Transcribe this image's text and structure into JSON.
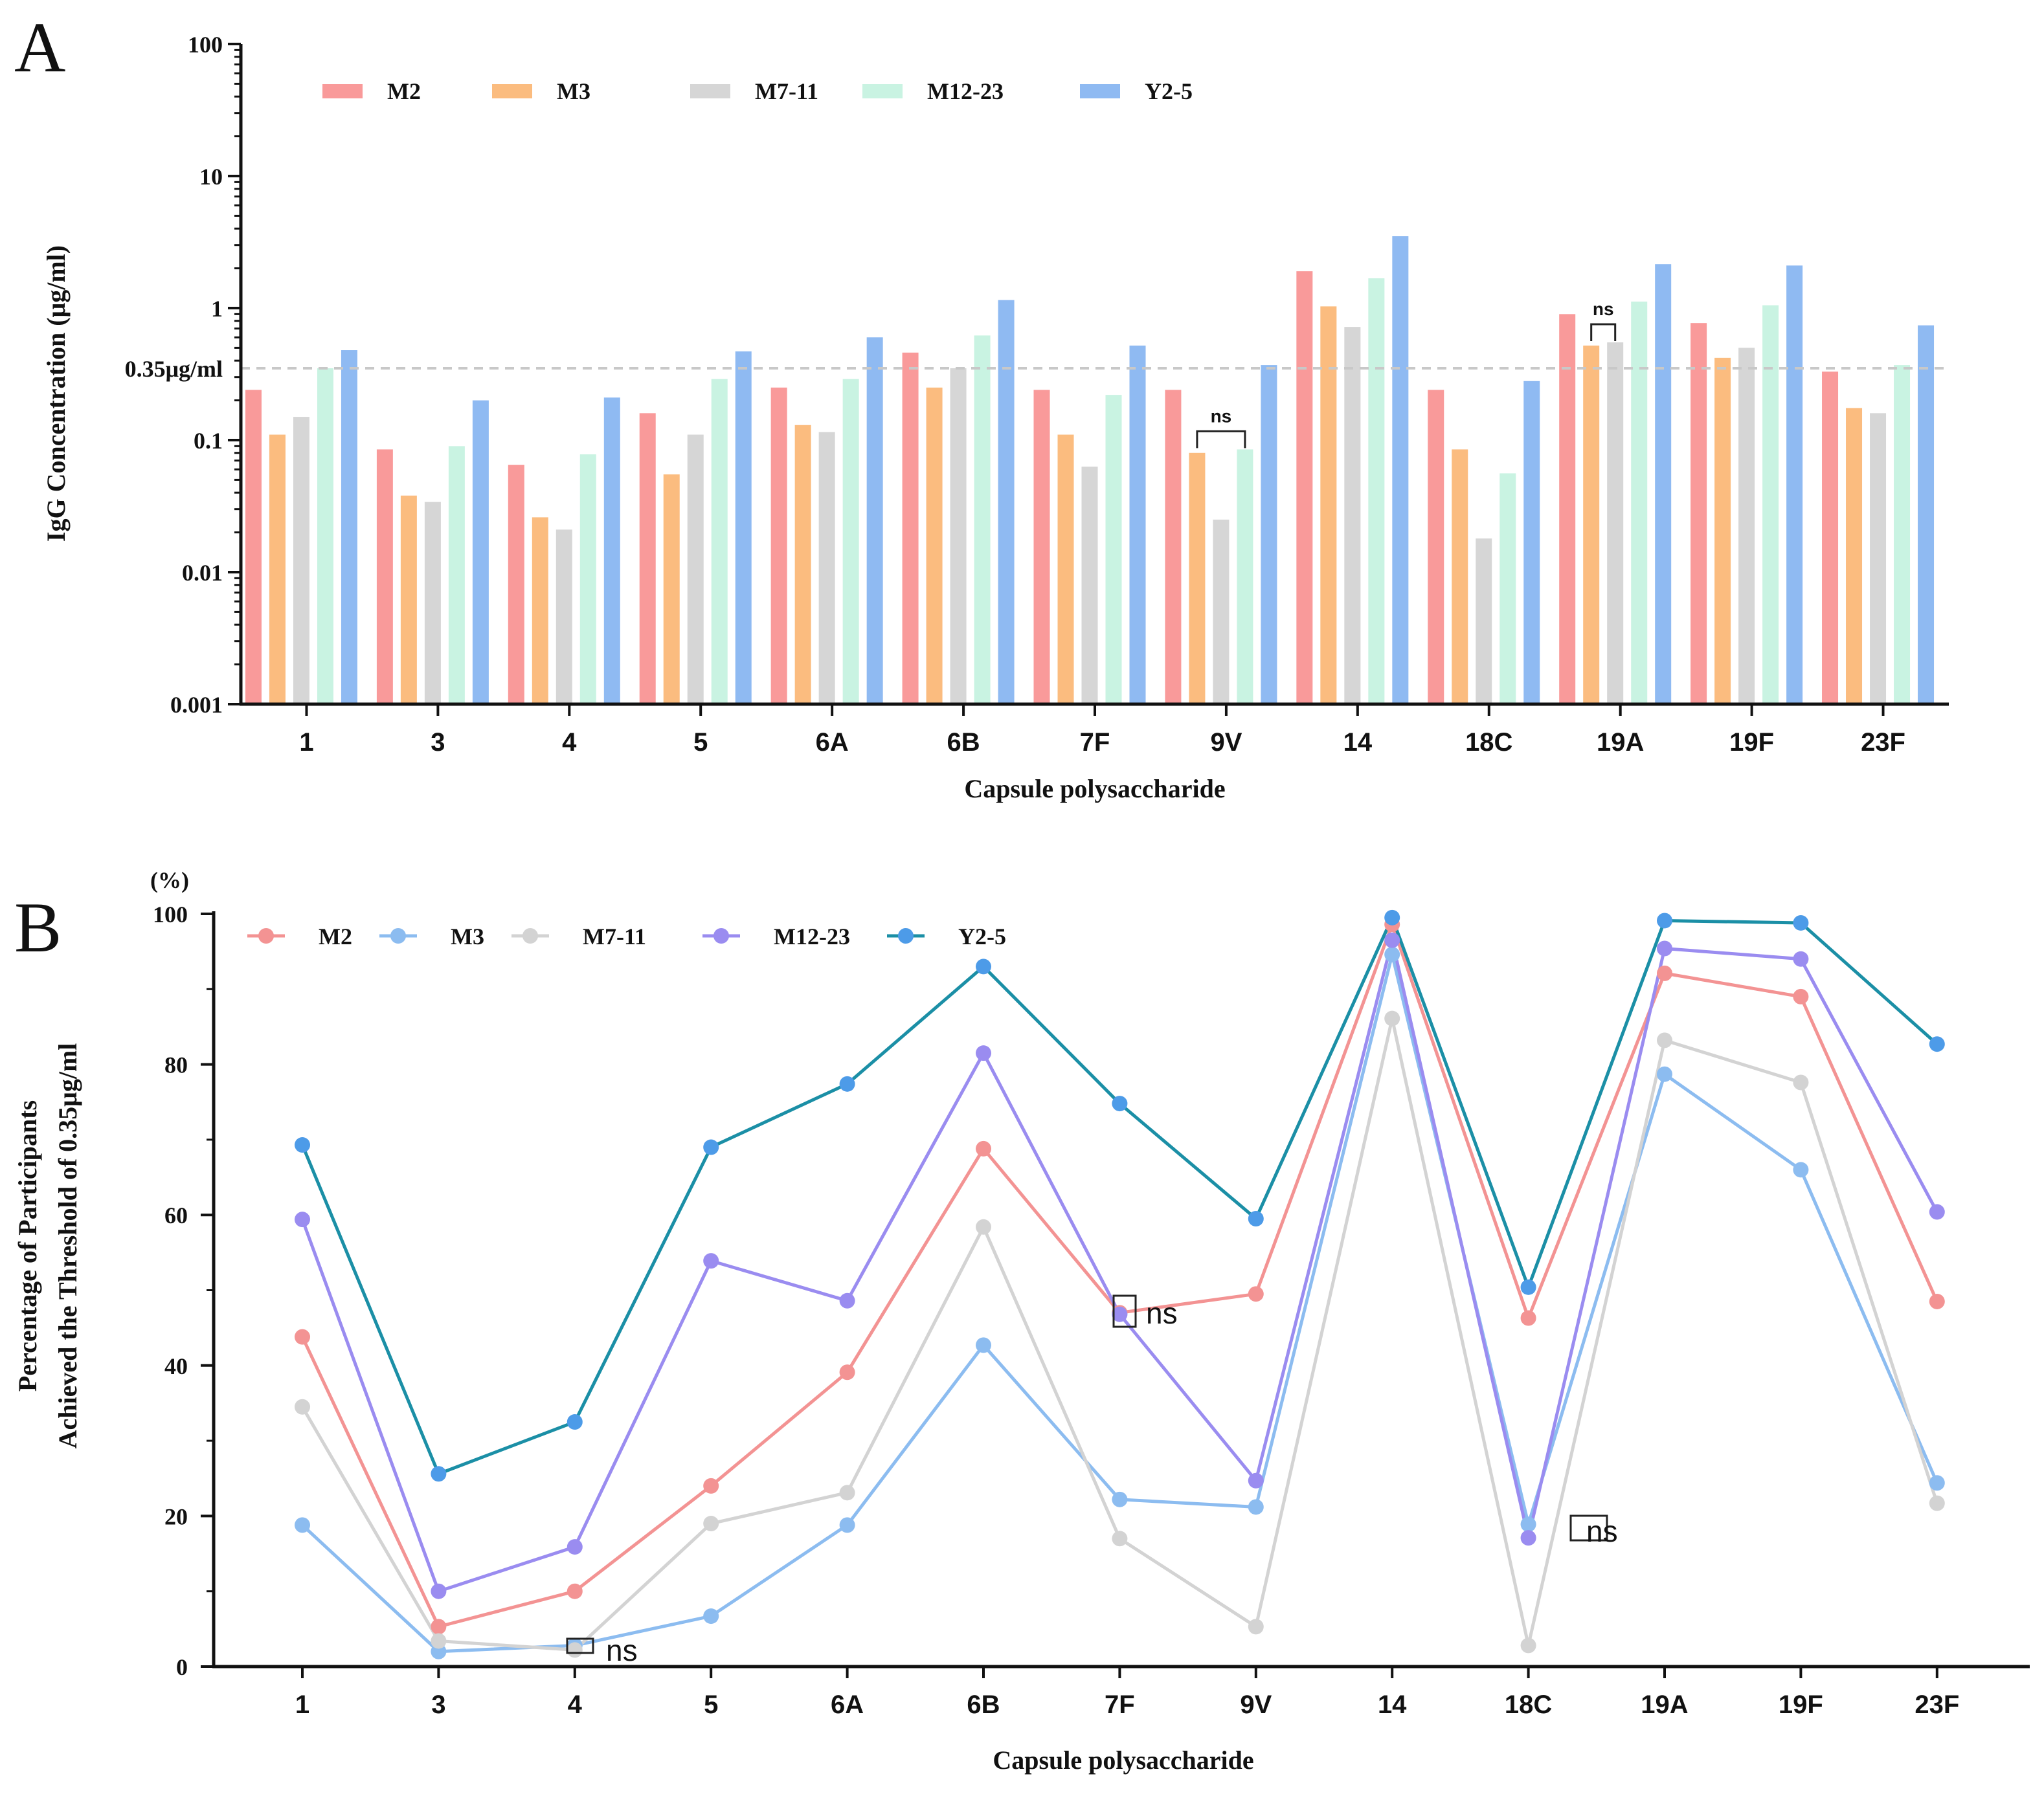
{
  "chart_data": [
    {
      "panel": "A",
      "type": "bar",
      "scale": "log",
      "xlabel": "Capsule polysaccharide",
      "ylabel": "IgG Concentration (μg/ml)",
      "ylim": [
        0.001,
        100
      ],
      "yticks": [
        100,
        10,
        1,
        0.1,
        0.01,
        0.001
      ],
      "ytick_labels": [
        "100",
        "10",
        "1",
        "0.1",
        "0.01",
        "0.001"
      ],
      "threshold": {
        "value": 0.35,
        "label": "0.35μg/ml"
      },
      "categories": [
        "1",
        "3",
        "4",
        "5",
        "6A",
        "6B",
        "7F",
        "9V",
        "14",
        "18C",
        "19A",
        "19F",
        "23F"
      ],
      "series": [
        {
          "name": "M2",
          "color": "#f99a9a",
          "values": [
            0.24,
            0.085,
            0.065,
            0.16,
            0.25,
            0.46,
            0.24,
            0.24,
            1.9,
            0.24,
            0.9,
            0.77,
            0.33
          ]
        },
        {
          "name": "M3",
          "color": "#fbbc7f",
          "values": [
            0.11,
            0.038,
            0.026,
            0.055,
            0.13,
            0.25,
            0.11,
            0.08,
            1.03,
            0.085,
            0.52,
            0.42,
            0.175
          ]
        },
        {
          "name": "M7-11",
          "color": "#d6d6d6",
          "values": [
            0.15,
            0.034,
            0.021,
            0.11,
            0.115,
            0.35,
            0.063,
            0.025,
            0.72,
            0.018,
            0.55,
            0.5,
            0.16
          ]
        },
        {
          "name": "M12-23",
          "color": "#c9f3e2",
          "values": [
            0.35,
            0.09,
            0.078,
            0.29,
            0.29,
            0.62,
            0.22,
            0.085,
            1.68,
            0.056,
            1.12,
            1.05,
            0.37
          ]
        },
        {
          "name": "Y2-5",
          "color": "#8fbaf2",
          "values": [
            0.48,
            0.2,
            0.21,
            0.47,
            0.6,
            1.15,
            0.52,
            0.37,
            3.5,
            0.28,
            2.15,
            2.1,
            0.74
          ]
        }
      ],
      "annotations": [
        {
          "text": "ns",
          "category": "9V",
          "between": [
            "M3",
            "M12-23"
          ]
        },
        {
          "text": "ns",
          "category": "19A",
          "between": [
            "M3",
            "M7-11"
          ]
        }
      ]
    },
    {
      "panel": "B",
      "type": "line",
      "xlabel": "Capsule polysaccharide",
      "ylabel": [
        "Percentage of Participants",
        "Achieved the Threshold of 0.35μg/ml"
      ],
      "yunit": "(%)",
      "ylim": [
        0,
        100
      ],
      "yticks": [
        0,
        20,
        40,
        60,
        80,
        100
      ],
      "categories": [
        "1",
        "3",
        "4",
        "5",
        "6A",
        "6B",
        "7F",
        "9V",
        "14",
        "18C",
        "19A",
        "19F",
        "23F"
      ],
      "series": [
        {
          "name": "M2",
          "color": "#f39393",
          "values": [
            43.8,
            5.3,
            10.0,
            24.0,
            39.1,
            68.8,
            47.0,
            49.5,
            98.6,
            46.3,
            92.1,
            89.0,
            48.5
          ]
        },
        {
          "name": "M3",
          "color": "#8cbcf0",
          "values": [
            18.8,
            2.0,
            2.8,
            6.7,
            18.8,
            42.7,
            22.2,
            21.2,
            94.6,
            18.9,
            78.7,
            66.0,
            24.4
          ]
        },
        {
          "name": "M7-11",
          "color": "#d3d3d3",
          "values": [
            34.5,
            3.4,
            2.2,
            19.0,
            23.1,
            58.4,
            17.0,
            5.3,
            86.1,
            2.8,
            83.2,
            77.6,
            21.7
          ]
        },
        {
          "name": "M12-23",
          "color": "#9a8cf0",
          "values": [
            59.4,
            10.0,
            15.9,
            53.9,
            48.6,
            81.5,
            46.8,
            24.7,
            96.5,
            17.1,
            95.4,
            94.0,
            60.4
          ]
        },
        {
          "name": "Y2-5",
          "color": "#4d9be8",
          "lineColor": "#1b8fa6",
          "values": [
            69.3,
            25.6,
            32.5,
            69.0,
            77.4,
            93.0,
            74.8,
            59.5,
            99.5,
            50.4,
            99.1,
            98.8,
            82.7
          ]
        }
      ],
      "annotations": [
        {
          "text": "ns",
          "category": "4"
        },
        {
          "text": "ns",
          "category": "7F"
        },
        {
          "text": "ns",
          "category": "18C"
        }
      ]
    }
  ]
}
